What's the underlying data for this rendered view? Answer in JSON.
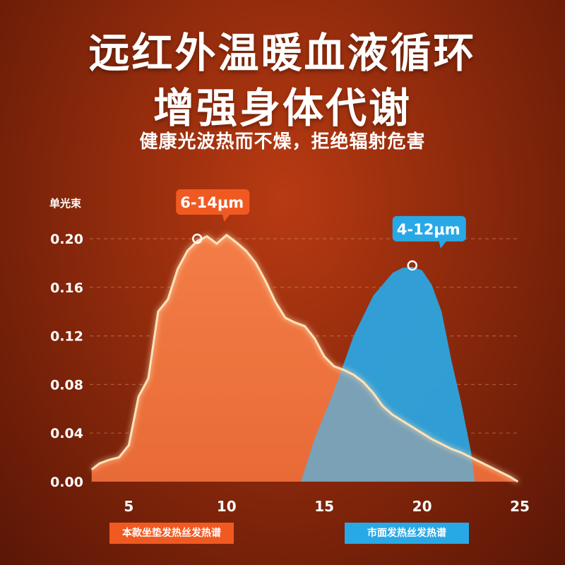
{
  "title_line1": "远红外温暖血液循环",
  "title_line2": "增强身体代谢",
  "subtitle": "健康光波热而不燥，拒绝辐射危害",
  "chart_data": {
    "type": "area",
    "ylabel": "单光束",
    "xlim": [
      3,
      25
    ],
    "ylim": [
      0,
      0.2
    ],
    "x_ticks": [
      5,
      10,
      15,
      20,
      25
    ],
    "y_ticks": [
      "0.00",
      "0.04",
      "0.08",
      "0.12",
      "0.16",
      "0.20"
    ],
    "grid": true,
    "series": [
      {
        "name": "本款坐垫发热丝发热谱",
        "color": "#f05a22",
        "x": [
          3.1,
          3.5,
          4.0,
          4.5,
          5.0,
          5.5,
          6.0,
          6.5,
          7.0,
          7.5,
          8.0,
          8.5,
          9.0,
          9.5,
          10.0,
          10.5,
          11.0,
          11.5,
          12.0,
          12.5,
          13.0,
          13.5,
          14.0,
          14.5,
          15.0,
          15.5,
          16.0,
          16.5,
          17.0,
          17.5,
          18.0,
          18.5,
          19.0,
          19.5,
          20.0,
          20.5,
          21.0,
          21.5,
          22.0,
          22.5,
          23.0,
          23.5,
          24.0,
          24.5,
          24.9
        ],
        "values": [
          0.01,
          0.015,
          0.018,
          0.02,
          0.03,
          0.07,
          0.085,
          0.14,
          0.15,
          0.175,
          0.19,
          0.198,
          0.202,
          0.196,
          0.203,
          0.197,
          0.19,
          0.18,
          0.165,
          0.148,
          0.135,
          0.131,
          0.128,
          0.118,
          0.103,
          0.095,
          0.092,
          0.088,
          0.082,
          0.073,
          0.062,
          0.055,
          0.05,
          0.045,
          0.04,
          0.035,
          0.031,
          0.027,
          0.024,
          0.02,
          0.016,
          0.012,
          0.008,
          0.004,
          0.0
        ],
        "peak_label": "6-14μm",
        "peak": [
          8.5,
          0.2
        ]
      },
      {
        "name": "市面发热丝发热谱",
        "color": "#29a8e6",
        "x": [
          13.8,
          14.5,
          15.5,
          16.5,
          17.5,
          18.5,
          19.0,
          19.5,
          20.0,
          20.5,
          21.0,
          21.5,
          22.0,
          22.5,
          22.7
        ],
        "values": [
          0.0,
          0.035,
          0.075,
          0.12,
          0.153,
          0.172,
          0.176,
          0.177,
          0.174,
          0.162,
          0.14,
          0.1,
          0.065,
          0.025,
          0.0
        ],
        "peak_label": "4-12μm",
        "peak": [
          19.5,
          0.178
        ]
      }
    ]
  }
}
